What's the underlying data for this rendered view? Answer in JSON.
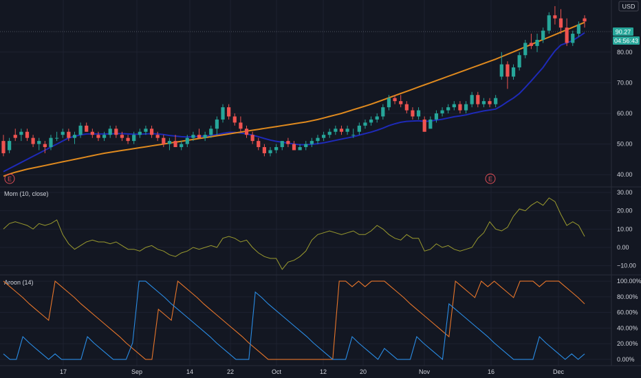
{
  "currency": "USD",
  "price_badge": {
    "value": "90.27",
    "countdown": "04:56:43"
  },
  "earnings_label": "E",
  "chart_data": [
    {
      "type": "candlestick",
      "pane": "price",
      "ylim": [
        36,
        97
      ],
      "y_ticks": [
        40,
        50,
        60,
        70,
        80
      ],
      "y_tick_labels": [
        "40.00",
        "50.00",
        "60.00",
        "70.00",
        "80.00"
      ],
      "ohlc": [
        [
          51,
          53,
          46,
          47
        ],
        [
          48,
          52,
          47,
          51
        ],
        [
          53,
          55,
          51,
          52
        ],
        [
          53,
          55,
          51,
          54
        ],
        [
          54,
          55,
          51,
          52
        ],
        [
          52,
          53,
          49,
          50
        ],
        [
          50,
          52,
          48,
          51
        ],
        [
          50,
          51,
          47,
          49
        ],
        [
          49,
          53,
          48,
          52
        ],
        [
          52,
          54,
          51,
          52
        ],
        [
          53,
          55,
          52,
          54
        ],
        [
          54,
          55,
          51,
          52
        ],
        [
          52,
          54,
          50,
          53
        ],
        [
          53,
          57,
          52,
          56
        ],
        [
          56,
          57,
          54,
          54
        ],
        [
          54,
          55,
          52,
          53
        ],
        [
          53,
          54,
          51,
          52
        ],
        [
          52,
          54,
          51,
          53
        ],
        [
          53,
          56,
          52,
          55
        ],
        [
          55,
          56,
          52,
          53
        ],
        [
          53,
          54,
          51,
          52
        ],
        [
          52,
          53,
          50,
          51
        ],
        [
          51,
          54,
          50,
          53
        ],
        [
          53,
          55,
          52,
          54
        ],
        [
          54,
          56,
          53,
          55
        ],
        [
          55,
          56,
          52,
          53
        ],
        [
          53,
          54,
          51,
          52
        ],
        [
          52,
          53,
          49,
          50
        ],
        [
          50,
          52,
          48,
          51
        ],
        [
          51,
          53,
          49,
          49
        ],
        [
          49,
          51,
          48,
          50
        ],
        [
          50,
          53,
          49,
          52
        ],
        [
          52,
          54,
          51,
          53
        ],
        [
          53,
          55,
          52,
          52
        ],
        [
          52,
          54,
          51,
          53
        ],
        [
          53,
          56,
          52,
          55
        ],
        [
          55,
          59,
          53,
          58
        ],
        [
          58,
          63,
          57,
          62
        ],
        [
          62,
          63,
          58,
          59
        ],
        [
          59,
          60,
          56,
          57
        ],
        [
          57,
          59,
          54,
          55
        ],
        [
          55,
          56,
          52,
          53
        ],
        [
          53,
          54,
          50,
          51
        ],
        [
          51,
          52,
          48,
          49
        ],
        [
          49,
          50,
          46,
          47
        ],
        [
          47,
          49,
          46,
          48
        ],
        [
          48,
          50,
          47,
          49
        ],
        [
          49,
          51,
          48,
          51
        ],
        [
          51,
          52,
          49,
          50
        ],
        [
          50,
          51,
          48,
          48
        ],
        [
          48,
          50,
          48,
          49
        ],
        [
          49,
          51,
          48,
          50
        ],
        [
          50,
          52,
          49,
          51
        ],
        [
          51,
          53,
          50,
          52
        ],
        [
          52,
          54,
          51,
          53
        ],
        [
          53,
          55,
          52,
          54
        ],
        [
          54,
          56,
          53,
          55
        ],
        [
          55,
          56,
          53,
          54
        ],
        [
          54,
          56,
          53,
          55
        ],
        [
          53,
          55,
          52,
          53
        ],
        [
          54,
          57,
          53,
          56
        ],
        [
          56,
          58,
          55,
          57
        ],
        [
          57,
          59,
          56,
          58
        ],
        [
          58,
          60,
          57,
          59
        ],
        [
          59,
          63,
          58,
          62
        ],
        [
          62,
          66,
          61,
          65
        ],
        [
          65,
          66,
          63,
          64
        ],
        [
          64,
          66,
          62,
          63
        ],
        [
          63,
          64,
          60,
          61
        ],
        [
          61,
          62,
          58,
          59
        ],
        [
          59,
          62,
          58,
          61
        ],
        [
          58,
          59,
          54,
          54
        ],
        [
          55,
          59,
          55,
          58
        ],
        [
          58,
          61,
          57,
          60
        ],
        [
          60,
          62,
          59,
          61
        ],
        [
          61,
          63,
          60,
          62
        ],
        [
          62,
          64,
          61,
          63
        ],
        [
          63,
          64,
          60,
          61
        ],
        [
          61,
          64,
          60,
          63
        ],
        [
          63,
          67,
          62,
          66
        ],
        [
          66,
          67,
          62,
          63
        ],
        [
          63,
          65,
          62,
          64
        ],
        [
          64,
          65,
          62,
          63
        ],
        [
          63,
          66,
          62,
          65
        ],
        [
          72,
          80,
          71,
          76
        ],
        [
          76,
          77,
          68,
          72
        ],
        [
          72,
          76,
          71,
          75
        ],
        [
          75,
          80,
          74,
          79
        ],
        [
          79,
          84,
          78,
          83
        ],
        [
          83,
          86,
          81,
          82
        ],
        [
          82,
          86,
          80,
          84
        ],
        [
          84,
          88,
          83,
          87
        ],
        [
          87,
          93,
          86,
          92
        ],
        [
          92,
          95,
          89,
          91
        ],
        [
          91,
          94,
          86,
          88
        ],
        [
          88,
          91,
          82,
          83
        ],
        [
          83,
          87,
          82,
          86
        ],
        [
          86,
          90,
          85,
          89
        ],
        [
          91,
          92,
          88,
          90
        ]
      ],
      "series": [
        {
          "values": [
            41,
            42,
            43,
            44,
            45,
            46,
            47,
            48,
            49,
            50,
            51,
            52,
            52.5,
            53,
            53.3,
            53.3,
            53.3,
            53.3,
            53.3,
            53.4,
            53.4,
            53.3,
            53.2,
            53.2,
            53.3,
            53.4,
            53.3,
            53.1,
            52.8,
            52.6,
            52.4,
            52.3,
            52.4,
            52.5,
            52.6,
            52.8,
            53.1,
            53.5,
            53.8,
            53.8,
            53.6,
            53.3,
            52.9,
            52.4,
            51.8,
            51.3,
            50.9,
            50.6,
            50.3,
            50,
            49.8,
            49.8,
            49.9,
            50.1,
            50.4,
            50.8,
            51.2,
            51.6,
            52,
            52.4,
            52.9,
            53.4,
            53.9,
            54.5,
            55.2,
            56,
            56.6,
            57.1,
            57.4,
            57.5,
            57.6,
            57.4,
            57.5,
            57.8,
            58.1,
            58.5,
            58.9,
            59.2,
            59.5,
            60,
            60.4,
            60.8,
            61.1,
            61.4,
            62.5,
            63.8,
            65,
            66.5,
            68.5,
            70.6,
            72.8,
            75,
            77.8,
            80.4,
            82.3,
            83,
            83.8,
            85,
            86.3
          ]
        },
        {
          "values": [
            39.5,
            40.2,
            40.8,
            41.3,
            41.8,
            42.2,
            42.6,
            43,
            43.4,
            43.8,
            44.2,
            44.6,
            45,
            45.4,
            45.8,
            46.2,
            46.6,
            47,
            47.3,
            47.6,
            47.9,
            48.2,
            48.5,
            48.8,
            49.1,
            49.4,
            49.7,
            50,
            50.3,
            50.6,
            50.9,
            51.2,
            51.5,
            51.8,
            52.1,
            52.4,
            52.7,
            53,
            53.3,
            53.6,
            53.9,
            54.2,
            54.5,
            54.8,
            55.1,
            55.4,
            55.7,
            56,
            56.3,
            56.6,
            56.9,
            57.2,
            57.6,
            58,
            58.5,
            59,
            59.5,
            60,
            60.6,
            61.2,
            61.8,
            62.4,
            63,
            63.7,
            64.4,
            65.1,
            65.8,
            66.5,
            67.2,
            67.9,
            68.6,
            69.3,
            70,
            70.7,
            71.4,
            72.1,
            72.8,
            73.5,
            74.2,
            74.9,
            75.6,
            76.3,
            77,
            77.7,
            78.5,
            79.3,
            80.1,
            80.9,
            81.7,
            82.5,
            83.3,
            84.1,
            84.9,
            85.7,
            86.5,
            87.3,
            88.1,
            88.9,
            89.7
          ]
        }
      ]
    },
    {
      "type": "line",
      "pane": "momentum",
      "title": "Mom (10, close)",
      "ylim": [
        -15,
        33
      ],
      "y_ticks": [
        -10,
        0,
        10,
        20,
        30
      ],
      "y_tick_labels": [
        "−10.00",
        "0.00",
        "10.00",
        "20.00",
        "30.00"
      ],
      "series": [
        {
          "values": [
            10,
            13,
            14,
            13,
            12,
            10,
            13,
            12,
            13,
            15,
            7,
            2,
            -1,
            1,
            3,
            4,
            3,
            3,
            2,
            3,
            1,
            -1,
            -1,
            -2,
            0,
            1,
            -1,
            -2,
            -4,
            -5,
            -3,
            -2,
            0,
            -1,
            0,
            1,
            0,
            5,
            6,
            5,
            3,
            4,
            0,
            -3,
            -5,
            -6,
            -6,
            -12,
            -8,
            -7,
            -5,
            -2,
            4,
            7,
            8,
            9,
            8,
            7,
            8,
            9,
            7,
            7,
            9,
            12,
            10,
            7,
            5,
            4,
            7,
            5,
            5,
            -2,
            -1,
            2,
            0,
            1,
            -1,
            -2,
            -1,
            0,
            5,
            8,
            14,
            10,
            9,
            11,
            17,
            21,
            20,
            23,
            25,
            23,
            27,
            25,
            18,
            12,
            14,
            12,
            6
          ]
        }
      ]
    },
    {
      "type": "line",
      "pane": "aroon",
      "title": "Aroon (14)",
      "ylim": [
        -8,
        108
      ],
      "y_ticks": [
        0,
        20,
        40,
        60,
        80,
        100
      ],
      "y_tick_labels": [
        "0.00%",
        "20.00%",
        "40.00%",
        "60.00%",
        "80.00%",
        "100.00%"
      ],
      "series": [
        {
          "values": [
            100,
            93,
            86,
            79,
            71,
            64,
            57,
            50,
            100,
            93,
            86,
            79,
            71,
            64,
            57,
            50,
            43,
            36,
            29,
            21,
            14,
            7,
            0,
            0,
            64,
            57,
            50,
            100,
            93,
            86,
            79,
            71,
            64,
            57,
            50,
            43,
            36,
            29,
            21,
            14,
            7,
            0,
            0,
            0,
            0,
            0,
            0,
            0,
            0,
            0,
            0,
            0,
            100,
            100,
            93,
            100,
            93,
            100,
            100,
            100,
            93,
            86,
            79,
            71,
            64,
            57,
            50,
            43,
            36,
            29,
            100,
            93,
            86,
            79,
            100,
            93,
            100,
            93,
            86,
            79,
            100,
            100,
            100,
            93,
            100,
            100,
            100,
            93,
            86,
            79,
            71
          ]
        },
        {
          "values": [
            7,
            0,
            0,
            29,
            21,
            14,
            7,
            0,
            7,
            0,
            0,
            0,
            0,
            29,
            21,
            14,
            7,
            0,
            0,
            0,
            21,
            100,
            100,
            93,
            86,
            79,
            71,
            64,
            57,
            50,
            43,
            36,
            29,
            21,
            14,
            7,
            0,
            0,
            0,
            86,
            79,
            71,
            64,
            57,
            50,
            43,
            36,
            29,
            21,
            14,
            7,
            0,
            0,
            0,
            29,
            21,
            14,
            7,
            0,
            14,
            7,
            0,
            0,
            0,
            29,
            21,
            14,
            7,
            0,
            71,
            64,
            57,
            50,
            43,
            36,
            29,
            21,
            14,
            7,
            0,
            0,
            0,
            0,
            29,
            21,
            14,
            7,
            0,
            7,
            0,
            7
          ]
        }
      ]
    }
  ],
  "x_axis": {
    "tick_labels": [
      "17",
      "Sep",
      "14",
      "22",
      "Oct",
      "12",
      "20",
      "Nov",
      "16",
      "Dec"
    ]
  }
}
